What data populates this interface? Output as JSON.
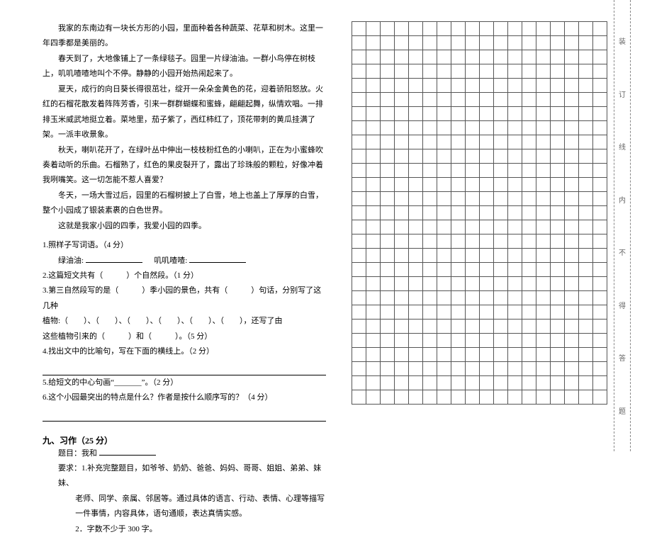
{
  "passage": {
    "font_size": 11,
    "line_height": 1.95,
    "paragraphs": [
      "我家的东南边有一块长方形的小园，里面种着各种蔬菜、花草和树木。这里一年四季都是美丽的。",
      "春天到了，大地像铺上了一条绿毯子。园里一片绿油油。一群小鸟停在树枝上，叽叽喳喳地叫个不停。静静的小园开始热闹起来了。",
      "夏天，成行的向日葵长得很茁壮，绽开一朵朵金黄色的花，迎着骄阳怒放。火红的石榴花散发着阵阵芳香，引来一群群蝴蝶和蜜蜂，翩翩起舞，纵情欢唱。一排排玉米威武地挺立着。菜地里，茄子紫了，西红柿红了，顶花带刺的黄瓜挂满了架。一派丰收景象。",
      "秋天，喇叭花开了，在绿叶丛中伸出一枝枝粉红色的小喇叭，正在为小蜜蜂吹奏着动听的乐曲。石榴熟了，红色的果皮裂开了，露出了珍珠般的颗粒，好像冲着我咧嘴笑。这一切怎能不惹人喜爱？",
      "冬天，一场大雪过后，园里的石榴树披上了白雪，地上也盖上了厚厚的白雪，整个小园成了银装素裹的白色世界。",
      "这就是我家小园的四季，我爱小园的四季。"
    ]
  },
  "questions": {
    "q1": {
      "label": "1.照样子写词语。（4 分）",
      "example1": "绿油油:",
      "example2": "叽叽喳喳:"
    },
    "q2": "2.这篇短文共有（　　　）个自然段。（1 分）",
    "q3_line1": "3.第三自然段写的是（　　　）季小园的景色，共有（　　　）句话，分别写了这几种",
    "q3_line2": "植物:（　　）、（　　）、（　　）、（　　）、（　　）、（　　），还写了由",
    "q3_line3": "这些植物引来的（　　　）和（　　　）。（5 分）",
    "q4": "4.找出文中的比喻句，写在下面的横线上。（2 分）",
    "q5": "5.给短文的中心句画“_______”。（2 分）",
    "q6": "6.这个小园最突出的特点是什么？作者是按什么顺序写的？（4 分）"
  },
  "section9": {
    "heading": "九、习作（25 分）",
    "topic_label": "题目：我和",
    "req_label": "要求：",
    "req1": "1.补充完整题目，如爷爷、奶奶、爸爸、妈妈、哥哥、姐姐、弟弟、妹妹、",
    "req1b": "老师、同学、亲属、邻居等。通过具体的语言、行动、表情、心理等描写",
    "req1c": "一件事情，内容具体，语句通顺，表达真情实感。",
    "req2": "2．字数不少于 300 字。"
  },
  "grid": {
    "rows": 27,
    "cols": 18,
    "cell_size": 20,
    "border_color": "#555555"
  },
  "binding": {
    "chars": [
      "装",
      "订",
      "线",
      "内",
      "不",
      "得",
      "答",
      "题"
    ],
    "border_color": "#888888",
    "font_size": 10
  },
  "colors": {
    "background": "#ffffff",
    "text": "#000000"
  }
}
